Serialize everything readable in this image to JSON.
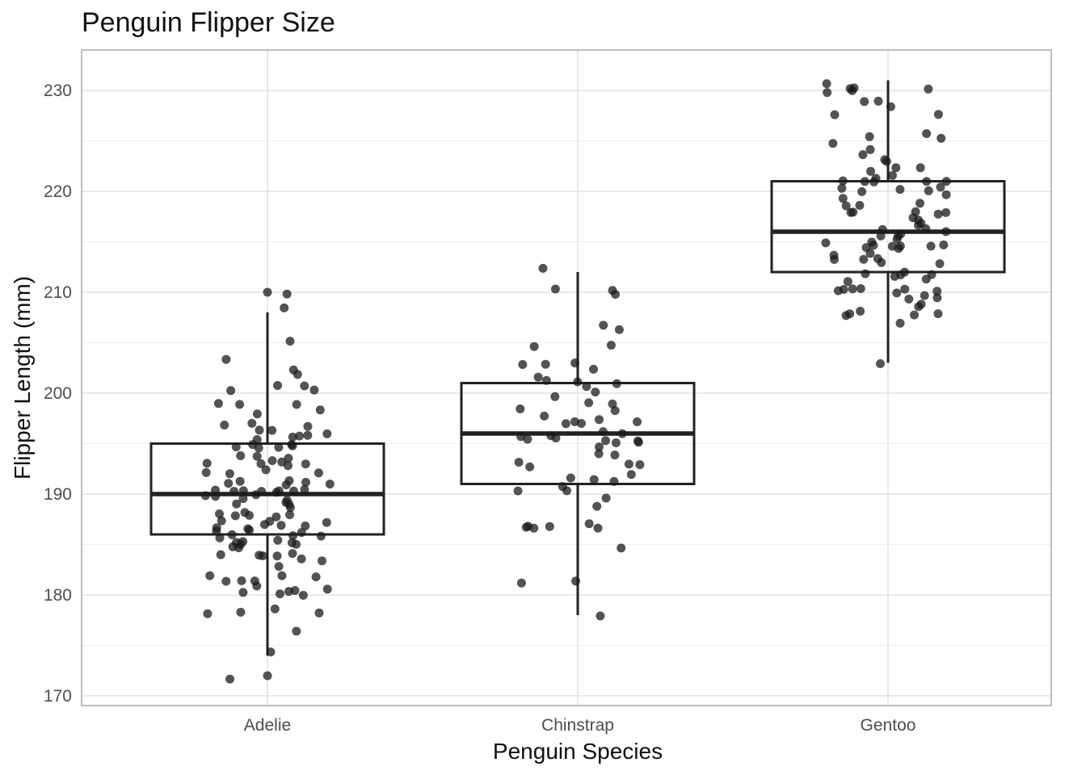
{
  "chart_data": {
    "type": "boxplot",
    "title": "Penguin Flipper Size",
    "xlabel": "Penguin Species",
    "ylabel": "Flipper Length (mm)",
    "ylim": [
      169,
      234
    ],
    "yticks": [
      170,
      180,
      190,
      200,
      210,
      220,
      230
    ],
    "grid": true,
    "overlay": "jittered points",
    "categories": [
      "Adelie",
      "Chinstrap",
      "Gentoo"
    ],
    "boxes": [
      {
        "category": "Adelie",
        "whisker_low": 174,
        "q1": 186,
        "median": 190,
        "q3": 195,
        "whisker_high": 208
      },
      {
        "category": "Chinstrap",
        "whisker_low": 178,
        "q1": 191,
        "median": 196,
        "q3": 201,
        "whisker_high": 212
      },
      {
        "category": "Gentoo",
        "whisker_low": 203,
        "q1": 212,
        "median": 216,
        "q3": 221,
        "whisker_high": 231
      }
    ],
    "outliers": [
      {
        "category": "Adelie",
        "values": [
          172,
          210
        ]
      }
    ],
    "points": [
      {
        "category": "Adelie",
        "values": [
          210,
          208,
          205,
          203,
          202,
          202,
          201,
          201,
          200,
          200,
          199,
          199,
          199,
          198,
          198,
          197,
          197,
          197,
          196,
          196,
          196,
          196,
          196,
          196,
          195,
          195,
          195,
          195,
          195,
          195,
          195,
          194,
          194,
          194,
          193,
          193,
          193,
          193,
          193,
          193,
          192,
          192,
          192,
          192,
          191,
          191,
          191,
          191,
          191,
          191,
          190,
          190,
          190,
          190,
          190,
          190,
          190,
          190,
          190,
          190,
          190,
          190,
          189,
          189,
          189,
          189,
          189,
          188,
          188,
          188,
          188,
          188,
          188,
          187,
          187,
          187,
          187,
          187,
          187,
          187,
          187,
          186,
          186,
          186,
          186,
          186,
          186,
          186,
          185,
          185,
          185,
          185,
          185,
          185,
          185,
          185,
          184,
          184,
          184,
          184,
          184,
          184,
          183,
          183,
          182,
          182,
          182,
          181,
          181,
          181,
          181,
          181,
          180,
          180,
          180,
          180,
          180,
          179,
          178,
          178,
          178,
          176,
          174,
          172
        ]
      },
      {
        "category": "Chinstrap",
        "values": [
          212,
          210,
          210,
          210,
          207,
          206,
          205,
          205,
          203,
          203,
          203,
          202,
          202,
          201,
          201,
          201,
          201,
          200,
          200,
          199,
          199,
          198,
          198,
          198,
          197,
          197,
          197,
          197,
          197,
          196,
          196,
          196,
          196,
          196,
          195,
          195,
          195,
          195,
          195,
          195,
          194,
          194,
          193,
          193,
          193,
          193,
          192,
          192,
          191,
          191,
          191,
          190,
          190,
          190,
          189,
          187,
          187,
          187,
          187,
          187,
          187,
          185,
          181,
          181,
          178
        ]
      },
      {
        "category": "Gentoo",
        "values": [
          231,
          230,
          230,
          230,
          230,
          230,
          229,
          229,
          228,
          228,
          228,
          226,
          225,
          225,
          225,
          224,
          224,
          223,
          223,
          222,
          222,
          222,
          222,
          221,
          221,
          221,
          221,
          221,
          221,
          220,
          220,
          220,
          220,
          220,
          220,
          219,
          219,
          219,
          219,
          218,
          218,
          218,
          218,
          218,
          217,
          217,
          217,
          217,
          216,
          216,
          216,
          216,
          216,
          216,
          215,
          215,
          215,
          215,
          215,
          215,
          215,
          215,
          214,
          214,
          214,
          214,
          213,
          213,
          213,
          213,
          213,
          212,
          212,
          212,
          212,
          212,
          211,
          211,
          210,
          210,
          210,
          210,
          210,
          210,
          210,
          210,
          209,
          209,
          209,
          209,
          208,
          208,
          208,
          208,
          208,
          207,
          203
        ]
      }
    ]
  }
}
